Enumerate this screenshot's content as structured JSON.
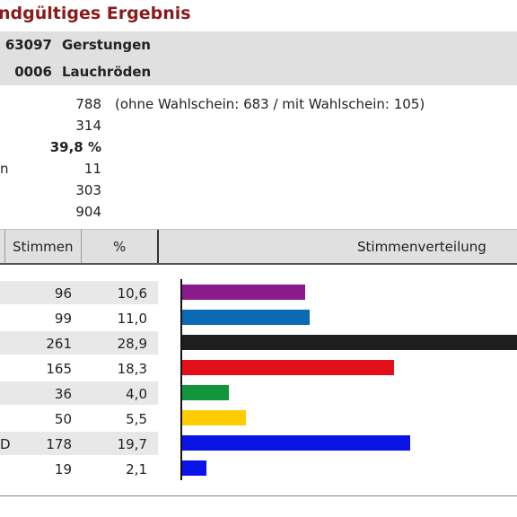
{
  "title": "ndgültiges Ergebnis",
  "region": [
    {
      "code": "63097",
      "name": "Gerstungen"
    },
    {
      "code": "0006",
      "name": "Lauchröden"
    }
  ],
  "stats": [
    {
      "value": "788",
      "note": "(ohne Wahlschein: 683 / mit Wahlschein: 105)"
    },
    {
      "value": "314"
    },
    {
      "value": "39,8 %"
    },
    {
      "value": "11",
      "fragment": "n"
    },
    {
      "value": "303"
    },
    {
      "value": "904"
    }
  ],
  "table": {
    "headers": {
      "votes": "Stimmen",
      "percent": "%",
      "distribution": "Stimmenverteilung"
    },
    "rows": [
      {
        "votes": "96",
        "percent": "10,6",
        "color": "#8b1a8b"
      },
      {
        "votes": "99",
        "percent": "11,0",
        "color": "#0a6ab4"
      },
      {
        "votes": "261",
        "percent": "28,9",
        "color": "#1e1e1e"
      },
      {
        "votes": "165",
        "percent": "18,3",
        "color": "#e3101b"
      },
      {
        "votes": "36",
        "percent": "4,0",
        "color": "#12963c"
      },
      {
        "votes": "50",
        "percent": "5,5",
        "color": "#ffcc00"
      },
      {
        "votes": "178",
        "percent": "19,7",
        "color": "#0a14e6",
        "fragment": "D"
      },
      {
        "votes": "19",
        "percent": "2,1",
        "color": "#0a14e6"
      }
    ]
  }
}
